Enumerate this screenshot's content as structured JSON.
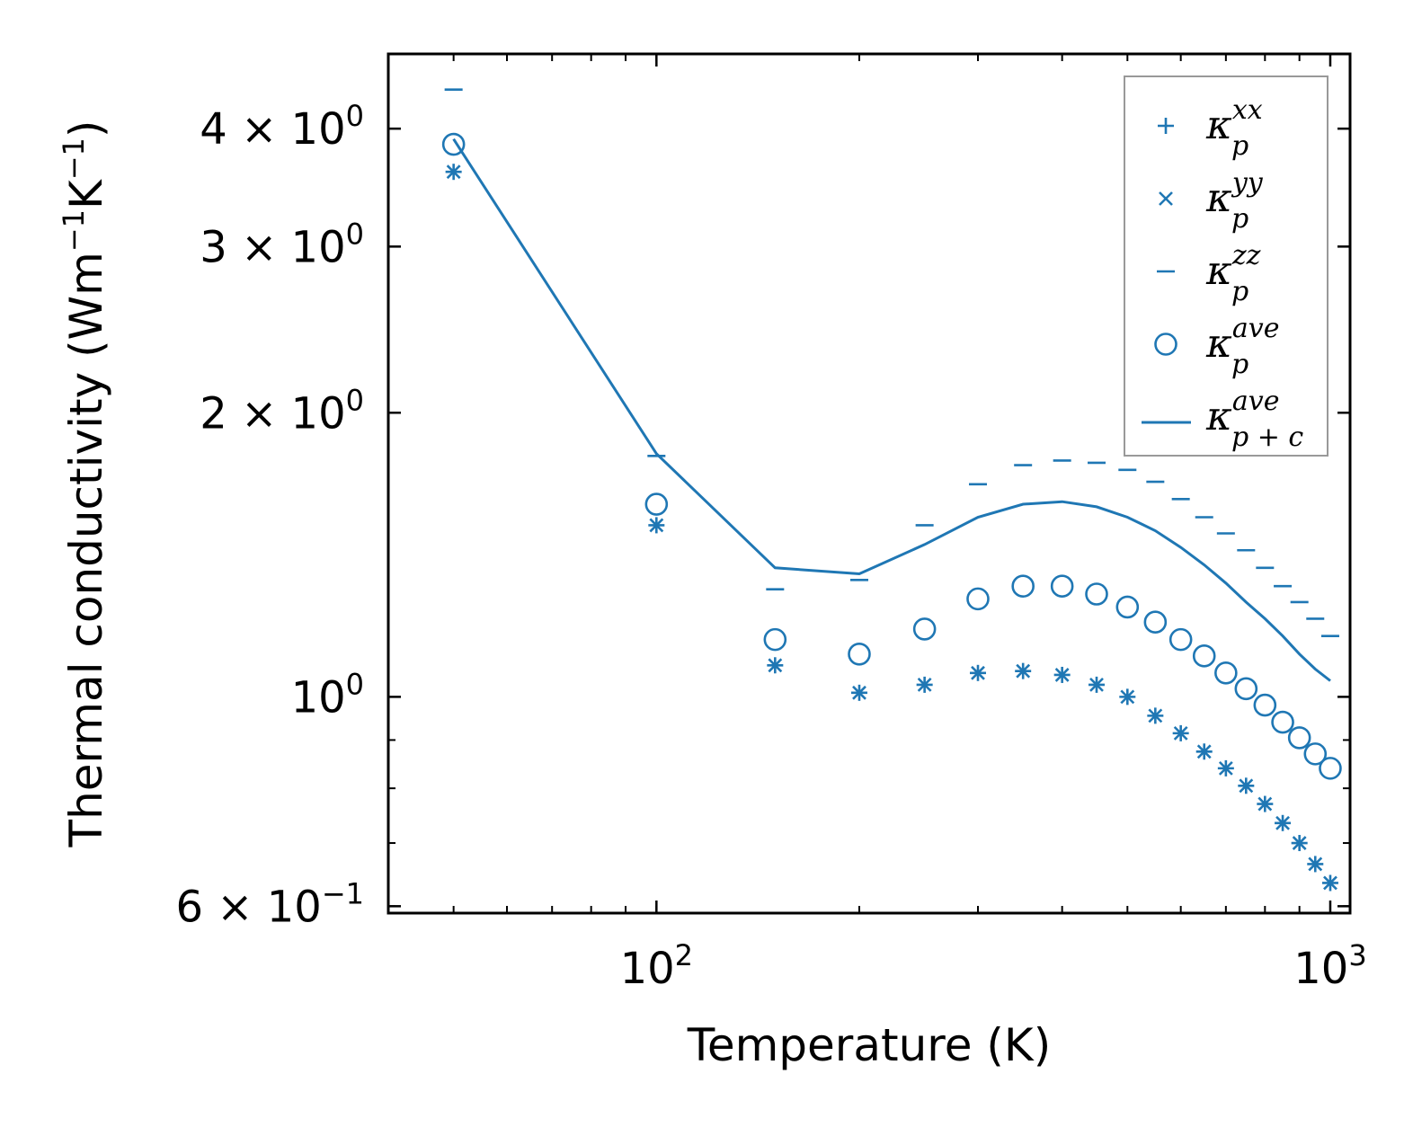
{
  "chart_data": {
    "type": "scatter",
    "xscale": "log",
    "yscale": "log",
    "xlabel": "Temperature (K)",
    "ylabel": "Thermal conductivity (Wm",
    "ylabel_parts": {
      "pre": "Thermal conductivity (Wm",
      "sup1": "−1",
      "mid": "K",
      "sup2": "−1",
      "post": ")"
    },
    "xlim": [
      40,
      1070
    ],
    "ylim": [
      0.59,
      4.8
    ],
    "x_ticks": [
      {
        "value": 100,
        "base": "10",
        "exp": "2"
      },
      {
        "value": 1000,
        "base": "10",
        "exp": "3"
      }
    ],
    "y_ticks": [
      {
        "value": 0.6,
        "coef": "6 × 10",
        "exp": "−1"
      },
      {
        "value": 1.0,
        "coef": "10",
        "exp": "0"
      },
      {
        "value": 2.0,
        "coef": "2 × 10",
        "exp": "0"
      },
      {
        "value": 3.0,
        "coef": "3 × 10",
        "exp": "0"
      },
      {
        "value": 4.0,
        "coef": "4 × 10",
        "exp": "0"
      }
    ],
    "color": "#1f77b4",
    "x": [
      50,
      100,
      150,
      200,
      250,
      300,
      350,
      400,
      450,
      500,
      550,
      600,
      650,
      700,
      750,
      800,
      850,
      900,
      950,
      1000
    ],
    "series": [
      {
        "name": "kxx",
        "marker": "plus",
        "values": [
          3.6,
          1.52,
          1.08,
          1.01,
          1.03,
          1.06,
          1.065,
          1.055,
          1.03,
          1.0,
          0.955,
          0.915,
          0.875,
          0.84,
          0.805,
          0.77,
          0.735,
          0.7,
          0.665,
          0.635
        ]
      },
      {
        "name": "kyy",
        "marker": "x",
        "values": [
          3.6,
          1.52,
          1.08,
          1.01,
          1.03,
          1.06,
          1.065,
          1.055,
          1.03,
          1.0,
          0.955,
          0.915,
          0.875,
          0.84,
          0.805,
          0.77,
          0.735,
          0.7,
          0.665,
          0.635
        ]
      },
      {
        "name": "kzz",
        "marker": "hline",
        "values": [
          4.4,
          1.8,
          1.3,
          1.33,
          1.52,
          1.68,
          1.76,
          1.78,
          1.77,
          1.74,
          1.69,
          1.62,
          1.55,
          1.49,
          1.43,
          1.37,
          1.31,
          1.26,
          1.21,
          1.16
        ]
      },
      {
        "name": "kave",
        "marker": "circle",
        "values": [
          3.85,
          1.6,
          1.15,
          1.11,
          1.18,
          1.27,
          1.31,
          1.31,
          1.285,
          1.245,
          1.2,
          1.15,
          1.105,
          1.06,
          1.02,
          0.98,
          0.94,
          0.905,
          0.87,
          0.84
        ]
      },
      {
        "name": "kpc",
        "marker": "line",
        "values": [
          3.9,
          1.81,
          1.37,
          1.35,
          1.45,
          1.55,
          1.6,
          1.61,
          1.59,
          1.55,
          1.5,
          1.44,
          1.38,
          1.32,
          1.26,
          1.21,
          1.16,
          1.11,
          1.07,
          1.04
        ]
      }
    ],
    "legend": {
      "position": "top-right",
      "entries": [
        {
          "symbol": "κ",
          "sub": "p",
          "sup": "xx",
          "marker": "plus"
        },
        {
          "symbol": "κ",
          "sub": "p",
          "sup": "yy",
          "marker": "x"
        },
        {
          "symbol": "κ",
          "sub": "p",
          "sup": "zz",
          "marker": "hline"
        },
        {
          "symbol": "κ",
          "sub": "p",
          "sup": "ave",
          "marker": "circle"
        },
        {
          "symbol": "κ",
          "sub": "p + c",
          "sup": "ave",
          "marker": "line"
        }
      ]
    }
  }
}
